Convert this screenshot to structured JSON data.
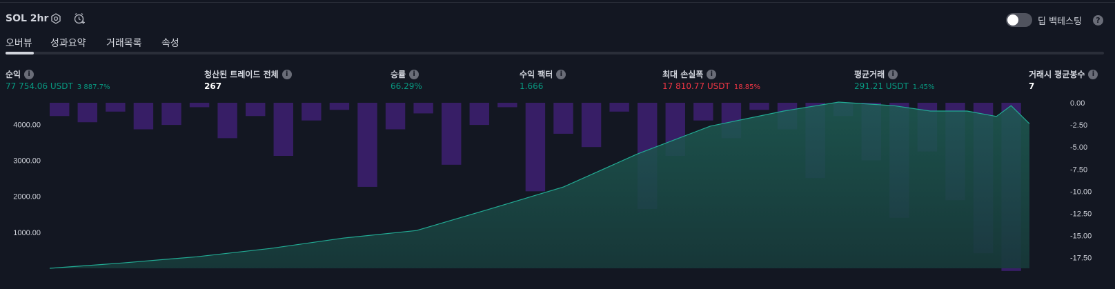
{
  "header": {
    "title": "SOL 2hr",
    "deep_backtest_label": "딥 백테스팅",
    "help_glyph": "?"
  },
  "tabs": [
    "오버뷰",
    "성과요약",
    "거래목록",
    "속성"
  ],
  "stats": {
    "net_profit": {
      "label": "순익",
      "value": "77 754.06 USDT",
      "sub": "3 887.7%"
    },
    "total_closed_trades": {
      "label": "청산된 트레이드 전체",
      "value": "267"
    },
    "percent_profitable": {
      "label": "승률",
      "value": "66.29%"
    },
    "profit_factor": {
      "label": "수익 팩터",
      "value": "1.666"
    },
    "max_drawdown": {
      "label": "최대 손실폭",
      "value": "17 810.77 USDT",
      "sub": "18.85%"
    },
    "avg_trade": {
      "label": "평균거래",
      "value": "291.21 USDT",
      "sub": "1.45%"
    },
    "avg_bars_in_trades": {
      "label": "거래시 평균봉수",
      "value": "7"
    }
  },
  "colors": {
    "background": "#131722",
    "equity_line": "#22ab94",
    "drawdown_bar": "#3c1f6e",
    "positive": "#089981",
    "negative": "#f23645"
  },
  "chart_data": {
    "type": "area",
    "series": [
      {
        "values_description": "equity",
        "x": [
          0,
          20,
          40,
          60,
          80,
          100,
          120,
          140,
          160,
          180,
          200,
          215,
          230,
          240,
          250,
          258,
          262,
          267
        ],
        "y": [
          0,
          150,
          320,
          550,
          840,
          1050,
          1650,
          2260,
          3170,
          3950,
          4370,
          4620,
          4520,
          4370,
          4370,
          4220,
          4520,
          4020
        ]
      },
      {
        "values_description": "drawdown",
        "y": [
          -1.5,
          -2.2,
          -1.0,
          -3.0,
          -2.5,
          -0.5,
          -4.0,
          -1.5,
          -6.0,
          -2.0,
          -0.8,
          -9.5,
          -3.0,
          -1.2,
          -7.0,
          -2.5,
          -0.5,
          -10.0,
          -3.5,
          -5.0,
          -1.0,
          -12.0,
          -6.0,
          -2.0,
          -4.0,
          -0.8,
          -3.0,
          -8.5,
          -1.5,
          -6.5,
          -13.0,
          -5.5,
          -11.0,
          -17.0,
          -19.0
        ]
      }
    ],
    "left_axis": {
      "ticks": [
        "1000.00",
        "2000.00",
        "3000.00",
        "4000.00"
      ],
      "ylim": [
        0,
        4600
      ]
    },
    "right_axis": {
      "ticks": [
        "0.00",
        "-2.50",
        "-5.00",
        "-7.50",
        "-10.00",
        "-12.50",
        "-15.00",
        "-17.50"
      ],
      "ylim": [
        -18.7,
        0
      ]
    }
  }
}
